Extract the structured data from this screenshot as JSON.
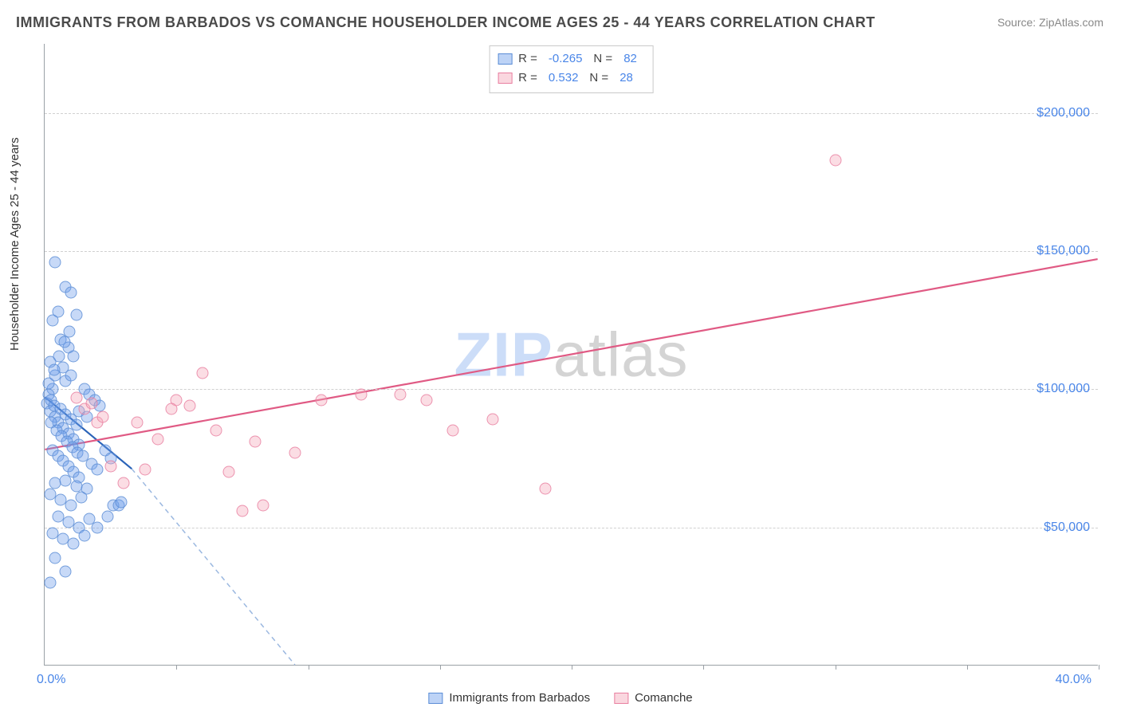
{
  "title": "IMMIGRANTS FROM BARBADOS VS COMANCHE HOUSEHOLDER INCOME AGES 25 - 44 YEARS CORRELATION CHART",
  "source": "Source: ZipAtlas.com",
  "ylabel": "Householder Income Ages 25 - 44 years",
  "watermark": {
    "part1": "ZIP",
    "part2": "atlas"
  },
  "chart": {
    "type": "scatter",
    "background_color": "#ffffff",
    "grid_color": "#d0d0d0",
    "axis_color": "#9aa0a6",
    "font_family": "Arial",
    "title_fontsize": 18,
    "label_fontsize": 15,
    "tick_fontsize": 16,
    "tick_color": "#4a86e8",
    "xlim": [
      0,
      40
    ],
    "xlim_labels": [
      "0.0%",
      "40.0%"
    ],
    "xticks_percent": [
      5,
      10,
      15,
      20,
      25,
      30,
      35,
      40
    ],
    "ylim": [
      0,
      225000
    ],
    "yticks": [
      50000,
      100000,
      150000,
      200000
    ],
    "ytick_labels": [
      "$50,000",
      "$100,000",
      "$150,000",
      "$200,000"
    ],
    "series": [
      {
        "name": "Immigrants from Barbados",
        "class": "blue",
        "marker": "circle",
        "marker_size": 15,
        "fill_color": "rgba(109,158,235,0.45)",
        "stroke_color": "#5b8dd6",
        "R": "-0.265",
        "N": "82",
        "trend": {
          "solid": {
            "x1": 0,
            "y1": 97000,
            "x2": 3.3,
            "y2": 71000,
            "stroke": "#2a63b8",
            "width": 2.2
          },
          "dashed": {
            "x1": 3.3,
            "y1": 71000,
            "x2": 9.5,
            "y2": 0,
            "stroke": "#9bb8e0",
            "width": 1.5,
            "dash": "6,5"
          }
        },
        "points": [
          [
            0.1,
            95000
          ],
          [
            0.2,
            92000
          ],
          [
            0.3,
            100000
          ],
          [
            0.4,
            90000
          ],
          [
            0.15,
            98000
          ],
          [
            0.25,
            96000
          ],
          [
            0.35,
            94000
          ],
          [
            0.5,
            88000
          ],
          [
            0.6,
            93000
          ],
          [
            0.7,
            86000
          ],
          [
            0.8,
            91000
          ],
          [
            0.9,
            84000
          ],
          [
            1.0,
            89000
          ],
          [
            1.1,
            82000
          ],
          [
            1.2,
            87000
          ],
          [
            1.3,
            80000
          ],
          [
            0.4,
            146000
          ],
          [
            0.8,
            137000
          ],
          [
            1.0,
            135000
          ],
          [
            0.5,
            128000
          ],
          [
            1.2,
            127000
          ],
          [
            0.3,
            125000
          ],
          [
            0.6,
            118000
          ],
          [
            0.9,
            115000
          ],
          [
            1.1,
            112000
          ],
          [
            0.7,
            108000
          ],
          [
            0.2,
            110000
          ],
          [
            0.4,
            105000
          ],
          [
            0.8,
            103000
          ],
          [
            1.0,
            105000
          ],
          [
            1.5,
            100000
          ],
          [
            1.7,
            98000
          ],
          [
            1.9,
            96000
          ],
          [
            2.1,
            94000
          ],
          [
            1.3,
            92000
          ],
          [
            1.6,
            90000
          ],
          [
            0.3,
            78000
          ],
          [
            0.5,
            76000
          ],
          [
            0.7,
            74000
          ],
          [
            0.9,
            72000
          ],
          [
            1.1,
            70000
          ],
          [
            1.3,
            68000
          ],
          [
            0.4,
            66000
          ],
          [
            0.8,
            67000
          ],
          [
            1.2,
            65000
          ],
          [
            1.6,
            64000
          ],
          [
            1.8,
            73000
          ],
          [
            2.0,
            71000
          ],
          [
            2.3,
            78000
          ],
          [
            2.5,
            75000
          ],
          [
            0.2,
            62000
          ],
          [
            0.6,
            60000
          ],
          [
            1.0,
            58000
          ],
          [
            1.4,
            61000
          ],
          [
            0.5,
            54000
          ],
          [
            0.9,
            52000
          ],
          [
            1.3,
            50000
          ],
          [
            1.7,
            53000
          ],
          [
            2.0,
            50000
          ],
          [
            2.4,
            54000
          ],
          [
            2.6,
            58000
          ],
          [
            2.8,
            58000
          ],
          [
            2.9,
            59000
          ],
          [
            0.3,
            48000
          ],
          [
            0.7,
            46000
          ],
          [
            1.1,
            44000
          ],
          [
            1.5,
            47000
          ],
          [
            0.4,
            39000
          ],
          [
            0.8,
            34000
          ],
          [
            0.2,
            30000
          ],
          [
            0.15,
            102000
          ],
          [
            0.35,
            107000
          ],
          [
            0.55,
            112000
          ],
          [
            0.75,
            117000
          ],
          [
            0.95,
            121000
          ],
          [
            0.25,
            88000
          ],
          [
            0.45,
            85000
          ],
          [
            0.65,
            83000
          ],
          [
            0.85,
            81000
          ],
          [
            1.05,
            79000
          ],
          [
            1.25,
            77000
          ],
          [
            1.45,
            76000
          ]
        ]
      },
      {
        "name": "Comanche",
        "class": "pink",
        "marker": "circle",
        "marker_size": 15,
        "fill_color": "rgba(244,167,185,0.45)",
        "stroke_color": "#e97fa0",
        "R": "0.532",
        "N": "28",
        "trend": {
          "solid": {
            "x1": 0,
            "y1": 78000,
            "x2": 40,
            "y2": 147000,
            "stroke": "#e05a84",
            "width": 2.2
          }
        },
        "points": [
          [
            1.2,
            97000
          ],
          [
            1.5,
            93000
          ],
          [
            2.0,
            88000
          ],
          [
            2.5,
            72000
          ],
          [
            3.0,
            66000
          ],
          [
            3.8,
            71000
          ],
          [
            4.3,
            82000
          ],
          [
            5.0,
            96000
          ],
          [
            5.5,
            94000
          ],
          [
            6.0,
            106000
          ],
          [
            6.5,
            85000
          ],
          [
            7.0,
            70000
          ],
          [
            7.5,
            56000
          ],
          [
            8.0,
            81000
          ],
          [
            8.3,
            58000
          ],
          [
            9.5,
            77000
          ],
          [
            10.5,
            96000
          ],
          [
            12.0,
            98000
          ],
          [
            13.5,
            98000
          ],
          [
            14.5,
            96000
          ],
          [
            15.5,
            85000
          ],
          [
            17.0,
            89000
          ],
          [
            19.0,
            64000
          ],
          [
            30.0,
            183000
          ],
          [
            2.2,
            90000
          ],
          [
            3.5,
            88000
          ],
          [
            4.8,
            93000
          ],
          [
            1.8,
            95000
          ]
        ]
      }
    ]
  },
  "legend_bottom": [
    {
      "swatch": "blue",
      "label": "Immigrants from Barbados"
    },
    {
      "swatch": "pink",
      "label": "Comanche"
    }
  ]
}
